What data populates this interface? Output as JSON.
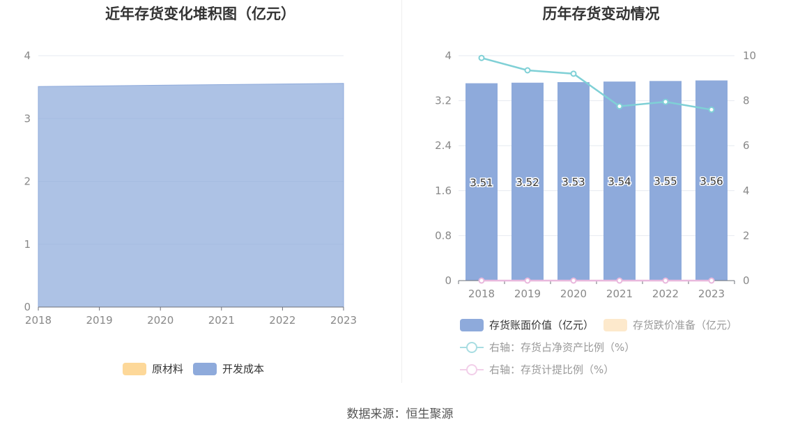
{
  "left": {
    "title": "近年存货变化堆积图（亿元）",
    "legend": [
      {
        "name": "原材料",
        "color": "#fdd899"
      },
      {
        "name": "开发成本",
        "color": "#8eaadb"
      }
    ]
  },
  "right": {
    "title": "历年存货变动情况",
    "legend": [
      {
        "name": "存货账面价值（亿元）",
        "color": "#8eaadb"
      },
      {
        "name": "存货跌价准备（亿元）",
        "color": "#fde9cc"
      },
      {
        "name": "右轴：存货占净资产比例（%）",
        "color": "#7fd0d6"
      },
      {
        "name": "右轴：存货计提比例（%）",
        "color": "#e9b8dd"
      }
    ]
  },
  "source": "数据来源：恒生聚源",
  "chart_data": [
    {
      "type": "area",
      "title": "近年存货变化堆积图（亿元）",
      "x": [
        "2018",
        "2019",
        "2020",
        "2021",
        "2022",
        "2023"
      ],
      "ylim": [
        0,
        4
      ],
      "yticks": [
        "0",
        "1",
        "2",
        "3",
        "4"
      ],
      "series": [
        {
          "name": "原材料",
          "values": [
            0,
            0,
            0,
            0,
            0,
            0
          ],
          "color": "#fdd899"
        },
        {
          "name": "开发成本",
          "values": [
            3.51,
            3.52,
            3.53,
            3.54,
            3.55,
            3.56
          ],
          "color": "#8eaadb"
        }
      ],
      "legend": "bottom-center",
      "grid": true
    },
    {
      "type": "bar",
      "title": "历年存货变动情况",
      "categories": [
        "2018",
        "2019",
        "2020",
        "2021",
        "2022",
        "2023"
      ],
      "ylim": [
        0,
        4
      ],
      "yticks": [
        "0",
        "0.8",
        "1.6",
        "2.4",
        "3.2",
        "4"
      ],
      "y2lim": [
        0,
        10
      ],
      "y2ticks": [
        "0",
        "2",
        "4",
        "6",
        "8",
        "10"
      ],
      "series": [
        {
          "name": "存货账面价值（亿元）",
          "type": "bar",
          "axis": "left",
          "values": [
            3.51,
            3.52,
            3.53,
            3.54,
            3.55,
            3.56
          ],
          "labels": [
            "3.51",
            "3.52",
            "3.53",
            "3.54",
            "3.55",
            "3.56"
          ],
          "color": "#8eaadb"
        },
        {
          "name": "存货跌价准备（亿元）",
          "type": "bar",
          "axis": "left",
          "values": [
            0,
            0,
            0,
            0,
            0,
            0
          ],
          "color": "#fde9cc"
        },
        {
          "name": "右轴：存货占净资产比例（%）",
          "type": "line",
          "axis": "right",
          "values": [
            9.9,
            9.35,
            9.2,
            7.75,
            7.95,
            7.6
          ],
          "color": "#7fd0d6"
        },
        {
          "name": "右轴：存货计提比例（%）",
          "type": "line",
          "axis": "right",
          "values": [
            0,
            0,
            0,
            0,
            0,
            0
          ],
          "color": "#e9b8dd"
        }
      ],
      "legend": "bottom-center",
      "grid": true
    }
  ]
}
